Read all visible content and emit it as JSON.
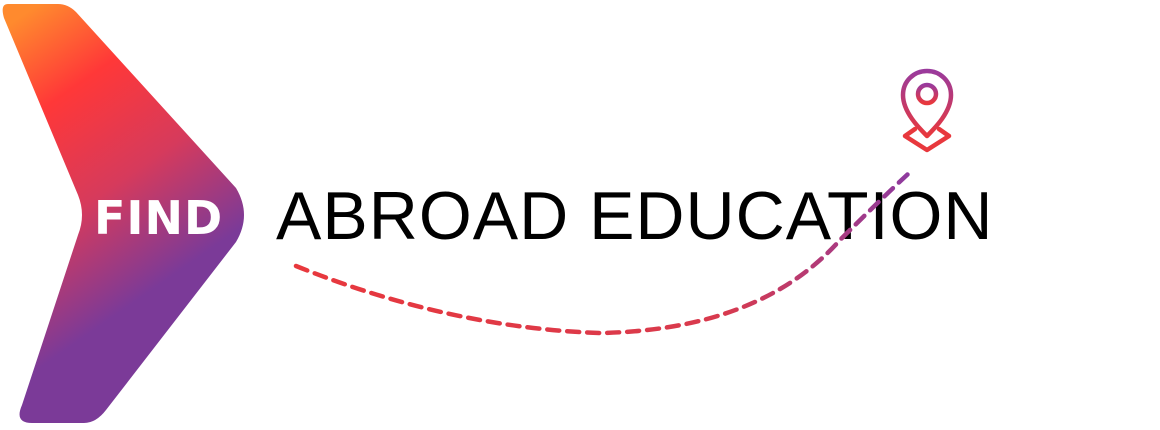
{
  "banner": {
    "find_text": "FIND",
    "headline": "ABROAD EDUCATION",
    "icons": {
      "chevron": "chevron-right-shape",
      "pin": "location-pin-icon"
    },
    "colors": {
      "gradient_orange": "#FF8A2E",
      "gradient_red": "#FF3838",
      "gradient_purple": "#7B3A98",
      "path_red": "#E8383D",
      "path_purple": "#8E3A9E",
      "headline": "#000000",
      "find_text": "#ffffff"
    }
  }
}
